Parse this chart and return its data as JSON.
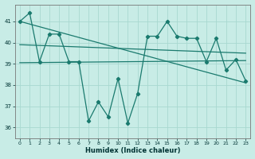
{
  "xlabel": "Humidex (Indice chaleur)",
  "bg_color": "#c8ece6",
  "grid_color": "#a8d8d0",
  "line_color": "#1a7a6e",
  "xlim": [
    -0.5,
    23.5
  ],
  "ylim": [
    35.5,
    41.8
  ],
  "yticks": [
    36,
    37,
    38,
    39,
    40,
    41
  ],
  "xticks": [
    0,
    1,
    2,
    3,
    4,
    5,
    6,
    7,
    8,
    9,
    10,
    11,
    12,
    13,
    14,
    15,
    16,
    17,
    18,
    19,
    20,
    21,
    22,
    23
  ],
  "main_series": [
    41.0,
    41.4,
    39.1,
    40.4,
    40.4,
    39.1,
    39.1,
    36.3,
    37.2,
    36.5,
    38.3,
    36.2,
    37.6,
    40.3,
    40.3,
    41.0,
    40.3,
    40.2,
    40.2,
    39.1,
    40.2,
    38.7,
    39.2,
    38.2
  ],
  "trend1_x": [
    0,
    23
  ],
  "trend1_y": [
    41.0,
    38.1
  ],
  "trend2_x": [
    0,
    23
  ],
  "trend2_y": [
    39.9,
    39.5
  ],
  "trend3_x": [
    0,
    23
  ],
  "trend3_y": [
    39.05,
    39.15
  ]
}
